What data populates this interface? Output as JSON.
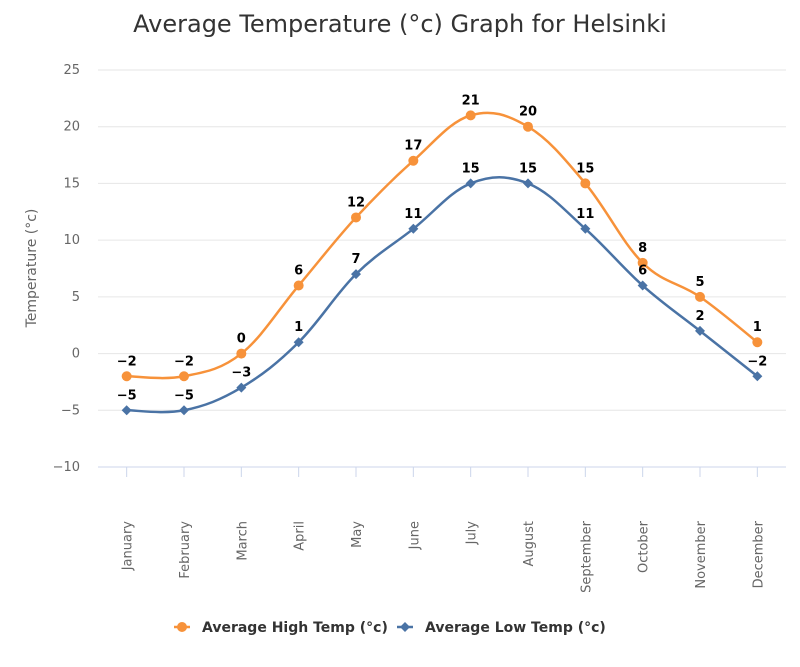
{
  "chart_data": {
    "type": "line",
    "title": "Average Temperature (°c) Graph for Helsinki",
    "xlabel": "",
    "ylabel": "Temperature (°c)",
    "ylim": [
      -10,
      25
    ],
    "yticks": [
      25,
      20,
      15,
      10,
      5,
      0,
      -5,
      -10
    ],
    "grid": true,
    "legend_position": "bottom",
    "categories": [
      "January",
      "February",
      "March",
      "April",
      "May",
      "June",
      "July",
      "August",
      "September",
      "October",
      "November",
      "December"
    ],
    "series": [
      {
        "name": "Average High Temp (°c)",
        "color": "#f7923a",
        "marker": "circle",
        "values": [
          -2,
          -2,
          0,
          6,
          12,
          17,
          21,
          20,
          15,
          8,
          5,
          1
        ]
      },
      {
        "name": "Average Low Temp (°c)",
        "color": "#4a73a5",
        "marker": "diamond",
        "values": [
          -5,
          -5,
          -3,
          1,
          7,
          11,
          15,
          15,
          11,
          6,
          2,
          -2
        ]
      }
    ]
  }
}
